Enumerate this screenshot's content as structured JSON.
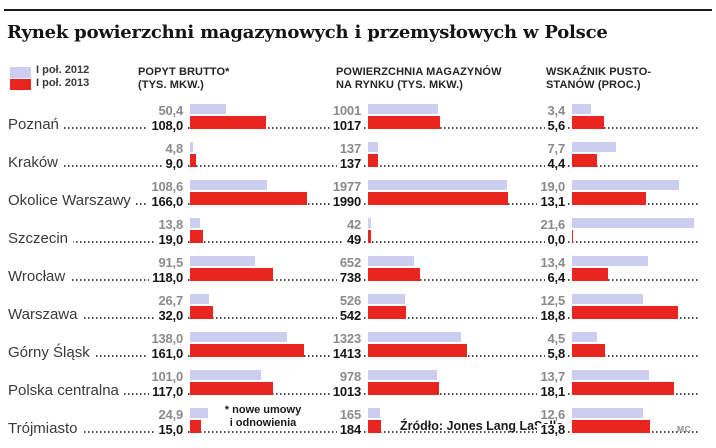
{
  "title": "Rynek powierzchni magazynowych i przemysłowych w Polsce",
  "legend": {
    "items": [
      {
        "label": "I poł. 2012",
        "color": "#cdcdf0"
      },
      {
        "label": "I poł. 2013",
        "color": "#e8251e"
      }
    ]
  },
  "columns": [
    {
      "header": [
        "POPYT BRUTTO*",
        "(TYS. MKW.)"
      ]
    },
    {
      "header": [
        "POWIERZCHNIA MAGAZYNÓW",
        "NA RYNKU (TYS. MKW.)"
      ]
    },
    {
      "header": [
        "WSKAŹNIK PUSTO-",
        "STANÓW (PROC.)"
      ]
    }
  ],
  "rows": [
    {
      "city": "Poznań",
      "values": [
        [
          "50,4",
          "108,0"
        ],
        [
          "1001",
          "1017"
        ],
        [
          "3,4",
          "5,6"
        ]
      ]
    },
    {
      "city": "Kraków",
      "values": [
        [
          "4,8",
          "9,0"
        ],
        [
          "137",
          "137"
        ],
        [
          "7,7",
          "4,4"
        ]
      ]
    },
    {
      "city": "Okolice Warszawy",
      "values": [
        [
          "108,6",
          "166,0"
        ],
        [
          "1977",
          "1990"
        ],
        [
          "19,0",
          "13,1"
        ]
      ]
    },
    {
      "city": "Szczecin",
      "values": [
        [
          "13,8",
          "19,0"
        ],
        [
          "42",
          "49"
        ],
        [
          "21,6",
          "0,0"
        ]
      ]
    },
    {
      "city": "Wrocław",
      "values": [
        [
          "91,5",
          "118,0"
        ],
        [
          "652",
          "738"
        ],
        [
          "13,4",
          "6,4"
        ]
      ]
    },
    {
      "city": "Warszawa",
      "values": [
        [
          "26,7",
          "32,0"
        ],
        [
          "526",
          "542"
        ],
        [
          "12,5",
          "18,8"
        ]
      ]
    },
    {
      "city": "Górny Śląsk",
      "values": [
        [
          "138,0",
          "161,0"
        ],
        [
          "1323",
          "1413"
        ],
        [
          "4,5",
          "5,8"
        ]
      ]
    },
    {
      "city": "Polska centralna",
      "values": [
        [
          "101,0",
          "117,0"
        ],
        [
          "978",
          "1013"
        ],
        [
          "13,7",
          "18,1"
        ]
      ]
    },
    {
      "city": "Trójmiasto",
      "values": [
        [
          "24,9",
          "15,0"
        ],
        [
          "165",
          "184"
        ],
        [
          "12,6",
          "13,8"
        ]
      ]
    }
  ],
  "footnote": [
    "* nowe umowy",
    "i odnowienia"
  ],
  "source": "Źródło: Jones Lang LaSalle",
  "credit": "MC",
  "chart_data": {
    "type": "bar",
    "orientation": "horizontal",
    "title": "Rynek powierzchni magazynowych i przemysłowych w Polsce",
    "legend_entries": [
      "I poł. 2012",
      "I poł. 2013"
    ],
    "legend_position": "top-left",
    "grid": false,
    "categories": [
      "Poznań",
      "Kraków",
      "Okolice Warszawy",
      "Szczecin",
      "Wrocław",
      "Warszawa",
      "Górny Śląsk",
      "Polska centralna",
      "Trójmiasto"
    ],
    "groups": [
      {
        "title": "POPYT BRUTTO* (TYS. MKW.)",
        "xlim": [
          0,
          170
        ],
        "series": [
          {
            "name": "I poł. 2012",
            "color": "#cdcdf0",
            "values": [
              50.4,
              4.8,
              108.6,
              13.8,
              91.5,
              26.7,
              138.0,
              101.0,
              24.9
            ]
          },
          {
            "name": "I poł. 2013",
            "color": "#e8251e",
            "values": [
              108.0,
              9.0,
              166.0,
              19.0,
              118.0,
              32.0,
              161.0,
              117.0,
              15.0
            ]
          }
        ]
      },
      {
        "title": "POWIERZCHNIA MAGAZYNÓW NA RYNKU (TYS. MKW.)",
        "xlim": [
          0,
          2000
        ],
        "series": [
          {
            "name": "I poł. 2012",
            "color": "#cdcdf0",
            "values": [
              1001,
              137,
              1977,
              42,
              652,
              526,
              1323,
              978,
              165
            ]
          },
          {
            "name": "I poł. 2013",
            "color": "#e8251e",
            "values": [
              1017,
              137,
              1990,
              49,
              738,
              542,
              1413,
              1013,
              184
            ]
          }
        ]
      },
      {
        "title": "WSKAŹNIK PUSTOSTANÓW (PROC.)",
        "xlim": [
          0,
          22
        ],
        "series": [
          {
            "name": "I poł. 2012",
            "color": "#cdcdf0",
            "values": [
              3.4,
              7.7,
              19.0,
              21.6,
              13.4,
              12.5,
              4.5,
              13.7,
              12.6
            ]
          },
          {
            "name": "I poł. 2013",
            "color": "#e8251e",
            "values": [
              5.6,
              4.4,
              13.1,
              0.0,
              6.4,
              18.8,
              5.8,
              18.1,
              13.8
            ]
          }
        ]
      }
    ],
    "annotations": [
      "* nowe umowy i odnowienia",
      "Źródło: Jones Lang LaSalle",
      "MC"
    ]
  }
}
